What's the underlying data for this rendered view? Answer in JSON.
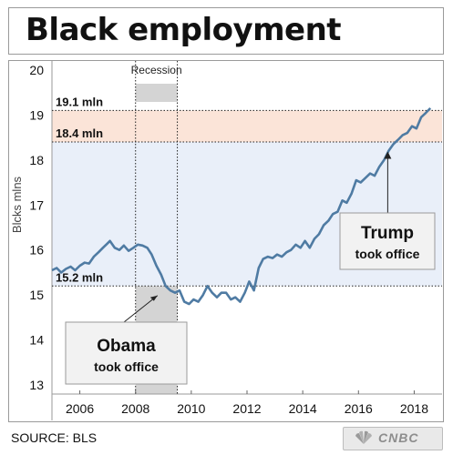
{
  "title": "Black employment",
  "source": "SOURCE: BLS",
  "logo_text": "CNBC",
  "logo_icon": "peacock-icon",
  "chart_data": {
    "type": "line",
    "title": "Black employment",
    "ylabel": "Blcks mlns",
    "ylim": [
      12.8,
      20.2
    ],
    "xlim": [
      2005.0,
      2019.0
    ],
    "y_ticks": [
      "13",
      "14",
      "15",
      "16",
      "17",
      "18",
      "19",
      "20"
    ],
    "x_ticks": [
      "2006",
      "2008",
      "2010",
      "2012",
      "2014",
      "2016",
      "2018"
    ],
    "recession": {
      "label": "Recession",
      "start": 2008.0,
      "end": 2009.5,
      "color": "#d4d4d4"
    },
    "bands": [
      {
        "from": 15.2,
        "to": 18.4,
        "color": "#e9eff9"
      },
      {
        "from": 18.4,
        "to": 19.1,
        "color": "#fbe4d8"
      }
    ],
    "levels": [
      {
        "value": 19.1,
        "label": "19.1 mln"
      },
      {
        "value": 18.4,
        "label": "18.4 mln"
      },
      {
        "value": 15.2,
        "label": "15.2 mln"
      }
    ],
    "annotations": [
      {
        "title": "Obama",
        "subtitle": "took office",
        "x": 2009.05,
        "y": 15.15
      },
      {
        "title": "Trump",
        "subtitle": "took office",
        "x": 2017.05,
        "y": 18.25
      }
    ],
    "series": [
      {
        "color": "#4f7ba3",
        "points": [
          [
            2005.0,
            15.55
          ],
          [
            2005.17,
            15.6
          ],
          [
            2005.33,
            15.5
          ],
          [
            2005.5,
            15.58
          ],
          [
            2005.67,
            15.63
          ],
          [
            2005.83,
            15.55
          ],
          [
            2006.0,
            15.65
          ],
          [
            2006.17,
            15.72
          ],
          [
            2006.33,
            15.7
          ],
          [
            2006.5,
            15.85
          ],
          [
            2006.67,
            15.95
          ],
          [
            2006.83,
            16.05
          ],
          [
            2007.0,
            16.15
          ],
          [
            2007.08,
            16.2
          ],
          [
            2007.25,
            16.05
          ],
          [
            2007.42,
            16.0
          ],
          [
            2007.58,
            16.1
          ],
          [
            2007.75,
            15.98
          ],
          [
            2007.92,
            16.05
          ],
          [
            2008.08,
            16.12
          ],
          [
            2008.25,
            16.1
          ],
          [
            2008.42,
            16.05
          ],
          [
            2008.58,
            15.9
          ],
          [
            2008.75,
            15.65
          ],
          [
            2008.92,
            15.45
          ],
          [
            2009.08,
            15.2
          ],
          [
            2009.25,
            15.1
          ],
          [
            2009.42,
            15.05
          ],
          [
            2009.58,
            15.1
          ],
          [
            2009.75,
            14.85
          ],
          [
            2009.92,
            14.8
          ],
          [
            2010.08,
            14.9
          ],
          [
            2010.25,
            14.85
          ],
          [
            2010.42,
            15.0
          ],
          [
            2010.58,
            15.2
          ],
          [
            2010.75,
            15.05
          ],
          [
            2010.92,
            14.95
          ],
          [
            2011.08,
            15.05
          ],
          [
            2011.25,
            15.05
          ],
          [
            2011.42,
            14.9
          ],
          [
            2011.58,
            14.95
          ],
          [
            2011.75,
            14.85
          ],
          [
            2011.92,
            15.05
          ],
          [
            2012.08,
            15.3
          ],
          [
            2012.25,
            15.1
          ],
          [
            2012.42,
            15.6
          ],
          [
            2012.58,
            15.8
          ],
          [
            2012.75,
            15.85
          ],
          [
            2012.92,
            15.82
          ],
          [
            2013.08,
            15.9
          ],
          [
            2013.25,
            15.85
          ],
          [
            2013.42,
            15.95
          ],
          [
            2013.58,
            16.0
          ],
          [
            2013.75,
            16.12
          ],
          [
            2013.92,
            16.05
          ],
          [
            2014.08,
            16.2
          ],
          [
            2014.25,
            16.05
          ],
          [
            2014.42,
            16.25
          ],
          [
            2014.58,
            16.35
          ],
          [
            2014.75,
            16.55
          ],
          [
            2014.92,
            16.65
          ],
          [
            2015.08,
            16.8
          ],
          [
            2015.25,
            16.85
          ],
          [
            2015.42,
            17.1
          ],
          [
            2015.58,
            17.05
          ],
          [
            2015.75,
            17.25
          ],
          [
            2015.92,
            17.55
          ],
          [
            2016.08,
            17.5
          ],
          [
            2016.25,
            17.6
          ],
          [
            2016.42,
            17.7
          ],
          [
            2016.58,
            17.65
          ],
          [
            2016.75,
            17.85
          ],
          [
            2016.92,
            18.0
          ],
          [
            2017.08,
            18.2
          ],
          [
            2017.25,
            18.35
          ],
          [
            2017.42,
            18.45
          ],
          [
            2017.58,
            18.55
          ],
          [
            2017.75,
            18.6
          ],
          [
            2017.92,
            18.75
          ],
          [
            2018.08,
            18.7
          ],
          [
            2018.25,
            18.95
          ],
          [
            2018.42,
            19.05
          ],
          [
            2018.58,
            19.15
          ]
        ]
      }
    ]
  }
}
